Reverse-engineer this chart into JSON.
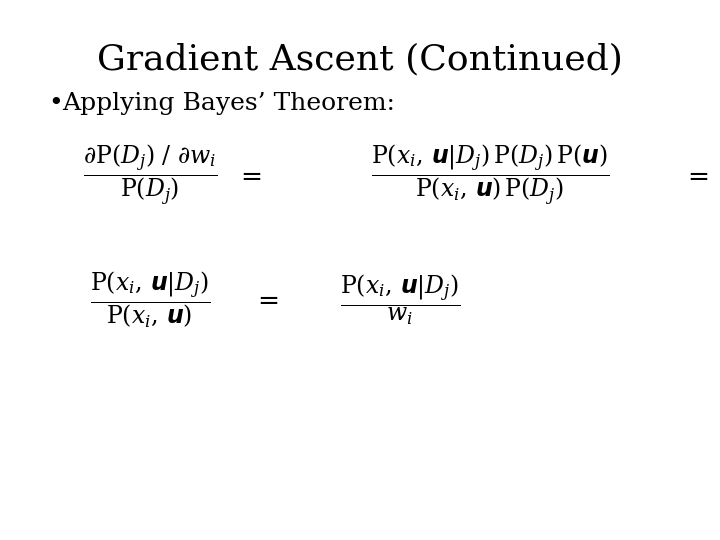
{
  "title": "Gradient Ascent (Continued)",
  "bullet": "Applying Bayes’ Theorem:",
  "background_color": "#ffffff",
  "text_color": "#000000",
  "title_fontsize": 26,
  "bullet_fontsize": 18,
  "eq_fontsize": 17,
  "figsize": [
    7.2,
    5.4
  ],
  "dpi": 100
}
